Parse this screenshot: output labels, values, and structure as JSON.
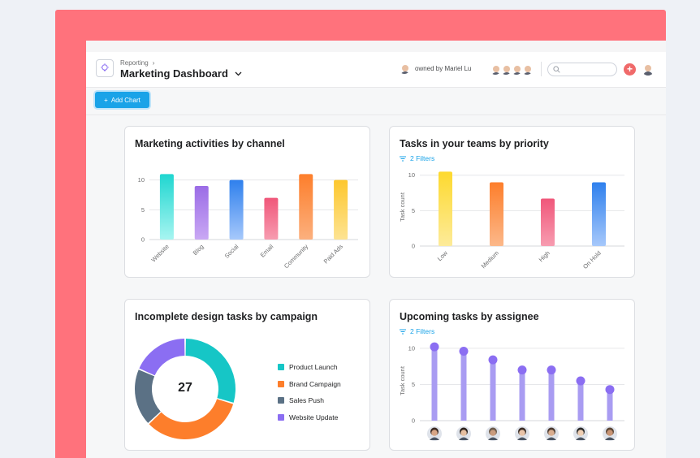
{
  "header": {
    "breadcrumb": "Reporting",
    "breadcrumb_sep": "›",
    "title": "Marketing Dashboard",
    "owner_text": "owned by Mariel Lu",
    "search_placeholder": "",
    "plus_label": "+"
  },
  "toolbar": {
    "add_chart_label": "Add Chart",
    "add_chart_icon": "+"
  },
  "colors": {
    "accent": "#1aa3e8",
    "frame": "#ff727c",
    "teal": "#16c6c6",
    "orange": "#fd7e2b",
    "slate": "#5b7185",
    "violet": "#8b6ef2",
    "lilac": "#a99cf2"
  },
  "cards": {
    "channel": {
      "title": "Marketing activities by channel",
      "chart_data": {
        "type": "bar",
        "categories": [
          "Website",
          "Blog",
          "Social",
          "Email",
          "Community",
          "Paid Ads"
        ],
        "values": [
          11,
          9,
          10,
          7,
          11,
          10
        ],
        "yticks": [
          0,
          5,
          10
        ],
        "ylim": [
          0,
          12
        ]
      }
    },
    "priority": {
      "title": "Tasks in your teams by priority",
      "filters": "2 Filters",
      "chart_data": {
        "type": "bar",
        "categories": [
          "Low",
          "Medium",
          "High",
          "On Hold"
        ],
        "values": [
          10.5,
          9,
          6.7,
          9
        ],
        "yticks": [
          0,
          5,
          10
        ],
        "ylabel": "Task count",
        "ylim": [
          0,
          11
        ]
      }
    },
    "campaign": {
      "title": "Incomplete design tasks by campaign",
      "center_value": "27",
      "chart_data": {
        "type": "pie",
        "categories": [
          "Product Launch",
          "Brand Campaign",
          "Sales Push",
          "Website Update"
        ],
        "values": [
          8,
          9,
          5,
          5
        ]
      }
    },
    "assignee": {
      "title": "Upcoming tasks by assignee",
      "filters": "2 Filters",
      "chart_data": {
        "type": "bar",
        "categories": [
          "assignee 1",
          "assignee 2",
          "assignee 3",
          "assignee 4",
          "assignee 5",
          "assignee 6",
          "assignee 7"
        ],
        "values": [
          10.2,
          9.6,
          8.4,
          7,
          7,
          5.5,
          4.3
        ],
        "yticks": [
          0,
          5,
          10
        ],
        "ylabel": "Task count",
        "ylim": [
          0,
          11
        ]
      }
    }
  }
}
